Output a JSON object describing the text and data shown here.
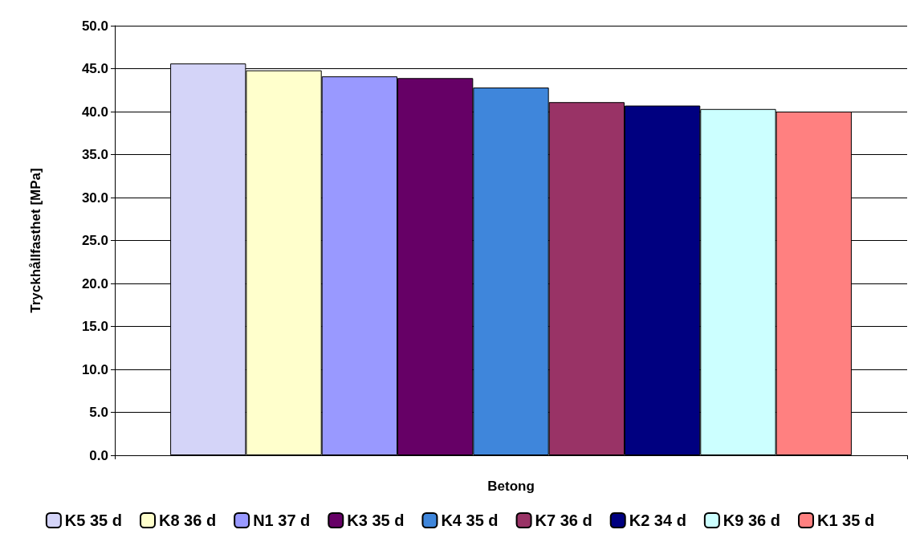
{
  "chart_data": {
    "type": "bar",
    "xlabel": "Betong",
    "ylabel": "Tryckhållfasthet [MPa]",
    "categories": [
      null
    ],
    "series": [
      {
        "name": "K5 35 d",
        "color": "#d4d4f8",
        "values": [
          45.6
        ]
      },
      {
        "name": "K8 36 d",
        "color": "#ffffcc",
        "values": [
          44.8
        ]
      },
      {
        "name": "N1 37 d",
        "color": "#9999ff",
        "values": [
          44.1
        ]
      },
      {
        "name": "K3 35 d",
        "color": "#660066",
        "values": [
          43.9
        ]
      },
      {
        "name": "K4 35 d",
        "color": "#3f86db",
        "values": [
          42.8
        ]
      },
      {
        "name": "K7 36 d",
        "color": "#993366",
        "values": [
          41.1
        ]
      },
      {
        "name": "K2 34 d",
        "color": "#000080",
        "values": [
          40.7
        ]
      },
      {
        "name": "K9 36 d",
        "color": "#ccffff",
        "values": [
          40.3
        ]
      },
      {
        "name": "K1 35 d",
        "color": "#ff8080",
        "values": [
          40.0
        ]
      }
    ],
    "ylim": [
      0,
      50
    ],
    "yticks": [
      {
        "value": 0,
        "label": "0.0"
      },
      {
        "value": 5,
        "label": "5.0"
      },
      {
        "value": 10,
        "label": "10.0"
      },
      {
        "value": 15,
        "label": "15.0"
      },
      {
        "value": 20,
        "label": "20.0"
      },
      {
        "value": 25,
        "label": "25.0"
      },
      {
        "value": 30,
        "label": "30.0"
      },
      {
        "value": 35,
        "label": "35.0"
      },
      {
        "value": 40,
        "label": "40.0"
      },
      {
        "value": 45,
        "label": "45.0"
      },
      {
        "value": 50,
        "label": "50.0"
      }
    ],
    "grid": "y",
    "legend": "bottom"
  }
}
